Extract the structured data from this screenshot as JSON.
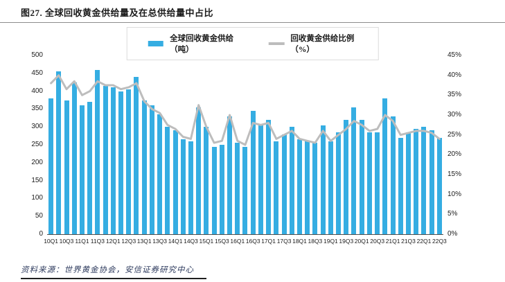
{
  "title": "图27. 全球回收黄金供给量及在总供给量中占比",
  "legend": {
    "bars": "全球回收黄金供给（吨）",
    "line": "回收黄金供给比例（%）"
  },
  "source": "资料来源：世界黄金协会，安信证券研究中心",
  "colors": {
    "bar": "#35ADE2",
    "line": "#BDBDBD",
    "title": "#1a1a1a",
    "source": "#2e3b5e"
  },
  "chart_data": {
    "type": "bar",
    "subtype": "bar+line dual-axis",
    "title": "图27. 全球回收黄金供给量及在总供给量中占比",
    "categories": [
      "10Q1",
      "10Q2",
      "10Q3",
      "10Q4",
      "11Q1",
      "11Q2",
      "11Q3",
      "11Q4",
      "12Q1",
      "12Q2",
      "12Q3",
      "12Q4",
      "13Q1",
      "13Q2",
      "13Q3",
      "13Q4",
      "14Q1",
      "14Q2",
      "14Q3",
      "14Q4",
      "15Q1",
      "15Q2",
      "15Q3",
      "15Q4",
      "16Q1",
      "16Q2",
      "16Q3",
      "16Q4",
      "17Q1",
      "17Q2",
      "17Q3",
      "17Q4",
      "18Q1",
      "18Q2",
      "18Q3",
      "18Q4",
      "19Q1",
      "19Q2",
      "19Q3",
      "19Q4",
      "20Q1",
      "20Q2",
      "20Q3",
      "20Q4",
      "21Q1",
      "21Q2",
      "21Q3",
      "21Q4",
      "22Q1",
      "22Q2",
      "22Q3"
    ],
    "x_label_every": 2,
    "series": [
      {
        "name": "全球回收黄金供给（吨）",
        "type": "bar",
        "axis": "left",
        "values": [
          380,
          455,
          375,
          425,
          360,
          370,
          460,
          415,
          410,
          400,
          405,
          440,
          375,
          360,
          335,
          300,
          290,
          265,
          260,
          355,
          300,
          245,
          250,
          330,
          255,
          245,
          345,
          305,
          320,
          260,
          280,
          300,
          265,
          260,
          255,
          305,
          260,
          285,
          320,
          355,
          320,
          285,
          285,
          380,
          330,
          270,
          285,
          295,
          300,
          290,
          270
        ]
      },
      {
        "name": "回收黄金供给比例（%）",
        "type": "line",
        "axis": "right",
        "values": [
          38,
          40,
          36.5,
          38.5,
          35,
          36,
          38.5,
          37.5,
          37.5,
          36.5,
          37,
          38,
          33.5,
          31.5,
          30.5,
          27.5,
          26.5,
          24.5,
          24,
          32.5,
          27,
          23,
          23.5,
          30,
          23.5,
          22.5,
          28,
          27.5,
          28,
          24,
          25,
          26,
          24,
          23.5,
          23,
          26,
          23.5,
          25,
          26.5,
          28.5,
          27.5,
          26,
          26.5,
          30,
          28.5,
          25,
          25.5,
          26,
          26,
          25.5,
          24
        ]
      }
    ],
    "left_axis": {
      "min": 0,
      "max": 500,
      "step": 50,
      "ticks": [
        "500",
        "450",
        "400",
        "350",
        "300",
        "250",
        "200",
        "150",
        "100",
        "50",
        "0"
      ]
    },
    "right_axis": {
      "min": 0,
      "max": 45,
      "step": 5,
      "suffix": "%",
      "ticks": [
        "45%",
        "40%",
        "35%",
        "30%",
        "25%",
        "20%",
        "15%",
        "10%",
        "5%",
        "0%"
      ]
    },
    "grid": false,
    "legend_position": "top-center"
  }
}
